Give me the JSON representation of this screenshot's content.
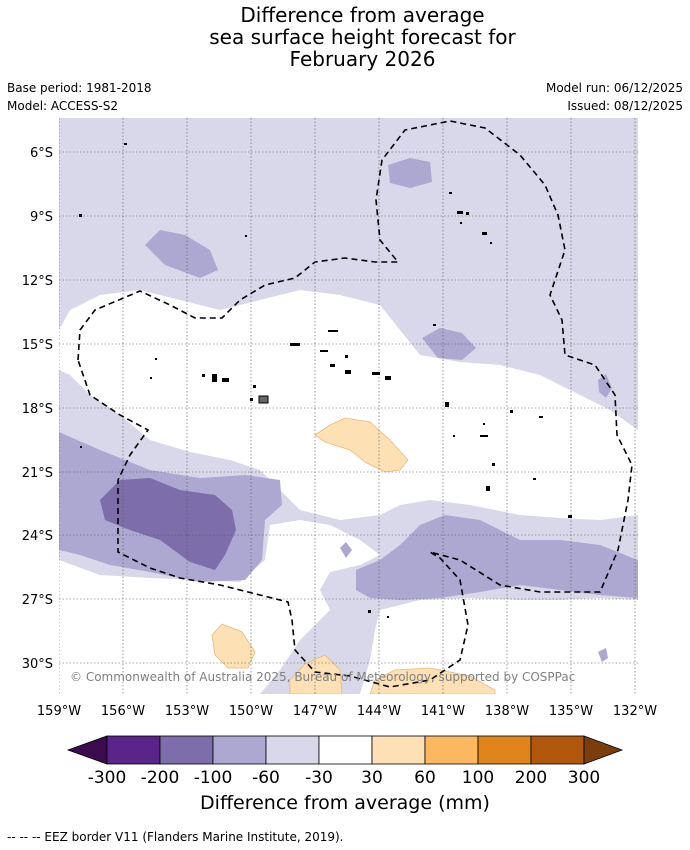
{
  "title": {
    "line1": "Difference from average",
    "line2": "sea surface height forecast for",
    "line3": "February 2026"
  },
  "meta": {
    "base_period": "Base period: 1981-2018",
    "model": "Model: ACCESS-S2",
    "model_run": "Model run: 06/12/2025",
    "issued": "Issued: 08/12/2025"
  },
  "map": {
    "lat_ticks": [
      "6°S",
      "9°S",
      "12°S",
      "15°S",
      "18°S",
      "21°S",
      "24°S",
      "27°S",
      "30°S"
    ],
    "lon_ticks": [
      "159°W",
      "156°W",
      "153°W",
      "150°W",
      "147°W",
      "144°W",
      "141°W",
      "138°W",
      "135°W",
      "132°W"
    ],
    "copyright": "© Commonwealth of Australia 2025, Bureau of Meteorology, supported by COSPPac",
    "colors": {
      "neg300_plus": "#3b0a4f",
      "neg300_200": "#5a2489",
      "neg200_100": "#7d6daa",
      "neg100_60": "#ada8d1",
      "neg60_30": "#d8d8ea",
      "neutral": "#ffffff",
      "pos30_60": "#fde0b4",
      "pos60_100": "#fbb860",
      "pos100_200": "#e0851b",
      "pos200_300": "#b0570c",
      "pos300_plus": "#7b3d0b"
    }
  },
  "colorbar": {
    "labels": [
      "-300",
      "-200",
      "-100",
      "-60",
      "-30",
      "30",
      "60",
      "100",
      "200",
      "300"
    ],
    "title": "Difference from average (mm)"
  },
  "footer": {
    "legend_line": "-- -- -- EEZ border V11 (Flanders Marine Institute, 2019)."
  }
}
